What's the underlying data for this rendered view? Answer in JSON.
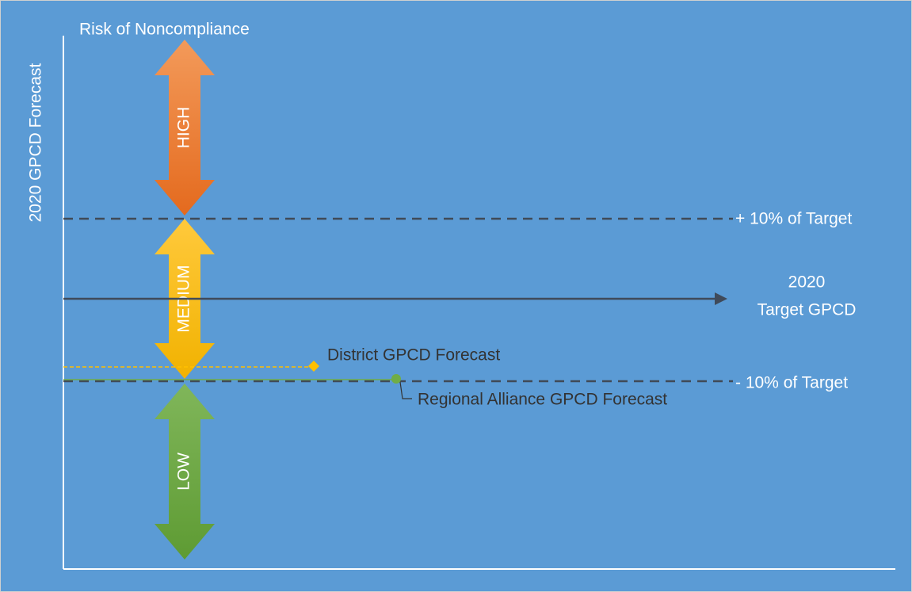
{
  "title": "Risk of Noncompliance",
  "y_axis_label": "2020 GPCD Forecast",
  "zones": [
    "HIGH",
    "MEDIUM",
    "LOW"
  ],
  "upper_line": "+ 10% of Target",
  "target_line": [
    "2020",
    "Target GPCD"
  ],
  "lower_line": "- 10% of Target",
  "markers": {
    "district": "District GPCD Forecast",
    "regional": "Regional Alliance GPCD Forecast"
  }
}
